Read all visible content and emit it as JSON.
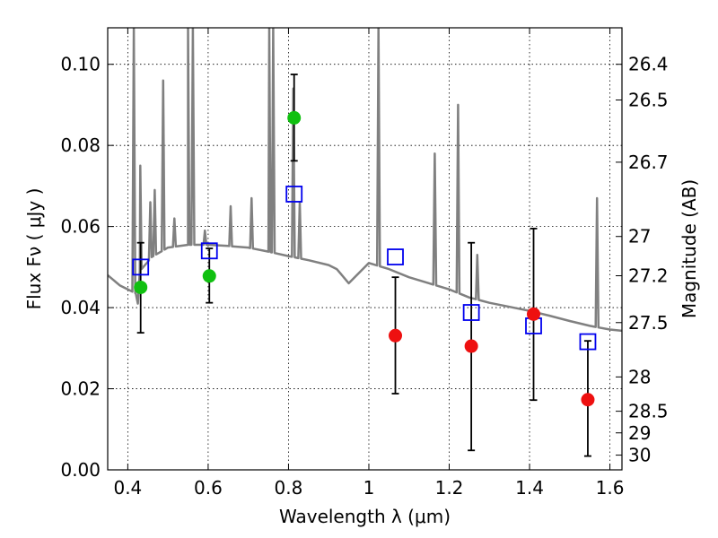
{
  "chart_data": {
    "type": "scatter",
    "xlabel": "Wavelength  λ (μm)",
    "ylabel_left": "Flux  Fν  ( μJy )",
    "ylabel_right": "Magnitude (AB)",
    "xlim": [
      0.35,
      1.63
    ],
    "ylim": [
      0.0,
      0.109
    ],
    "grid": true,
    "x_ticks": [
      {
        "value": 0.4,
        "label": "0.4"
      },
      {
        "value": 0.6,
        "label": "0.6"
      },
      {
        "value": 0.8,
        "label": "0.8"
      },
      {
        "value": 1.0,
        "label": "1"
      },
      {
        "value": 1.2,
        "label": "1.2"
      },
      {
        "value": 1.4,
        "label": "1.4"
      },
      {
        "value": 1.6,
        "label": "1.6"
      }
    ],
    "y_ticks": [
      {
        "value": 0.0,
        "label": "0.00"
      },
      {
        "value": 0.02,
        "label": "0.02"
      },
      {
        "value": 0.04,
        "label": "0.04"
      },
      {
        "value": 0.06,
        "label": "0.06"
      },
      {
        "value": 0.08,
        "label": "0.08"
      },
      {
        "value": 0.1,
        "label": "0.10"
      }
    ],
    "mag_ticks": [
      {
        "value": 26.4,
        "label": "26.4"
      },
      {
        "value": 26.5,
        "label": "26.5"
      },
      {
        "value": 26.7,
        "label": "26.7"
      },
      {
        "value": 27.0,
        "label": "27"
      },
      {
        "value": 27.2,
        "label": "27.2"
      },
      {
        "value": 27.5,
        "label": "27.5"
      },
      {
        "value": 28.0,
        "label": "28"
      },
      {
        "value": 28.5,
        "label": "28.5"
      },
      {
        "value": 29.0,
        "label": "29"
      },
      {
        "value": 30.0,
        "label": "30"
      }
    ],
    "series": [
      {
        "name": "model-spectrum",
        "kind": "line",
        "color": "#808080",
        "continuum": [
          [
            0.35,
            0.048
          ],
          [
            0.38,
            0.0455
          ],
          [
            0.4,
            0.0445
          ],
          [
            0.42,
            0.0435
          ],
          [
            0.425,
            0.041
          ],
          [
            0.43,
            0.049
          ],
          [
            0.46,
            0.0525
          ],
          [
            0.5,
            0.0548
          ],
          [
            0.55,
            0.0555
          ],
          [
            0.6,
            0.0555
          ],
          [
            0.65,
            0.0552
          ],
          [
            0.7,
            0.0548
          ],
          [
            0.75,
            0.0538
          ],
          [
            0.8,
            0.0527
          ],
          [
            0.85,
            0.0517
          ],
          [
            0.9,
            0.0505
          ],
          [
            0.92,
            0.0495
          ],
          [
            0.95,
            0.046
          ],
          [
            0.97,
            0.048
          ],
          [
            1.0,
            0.051
          ],
          [
            1.05,
            0.0495
          ],
          [
            1.1,
            0.0475
          ],
          [
            1.15,
            0.046
          ],
          [
            1.2,
            0.0445
          ],
          [
            1.25,
            0.0425
          ],
          [
            1.3,
            0.0412
          ],
          [
            1.35,
            0.0402
          ],
          [
            1.4,
            0.0392
          ],
          [
            1.45,
            0.038
          ],
          [
            1.5,
            0.0367
          ],
          [
            1.55,
            0.0355
          ],
          [
            1.6,
            0.0346
          ],
          [
            1.63,
            0.0343
          ]
        ],
        "lines": [
          {
            "x": 0.415,
            "peak": 0.109
          },
          {
            "x": 0.431,
            "peak": 0.075
          },
          {
            "x": 0.456,
            "peak": 0.066
          },
          {
            "x": 0.467,
            "peak": 0.069
          },
          {
            "x": 0.488,
            "peak": 0.096
          },
          {
            "x": 0.516,
            "peak": 0.062
          },
          {
            "x": 0.55,
            "peak": 0.109
          },
          {
            "x": 0.562,
            "peak": 0.109
          },
          {
            "x": 0.592,
            "peak": 0.059
          },
          {
            "x": 0.656,
            "peak": 0.065
          },
          {
            "x": 0.708,
            "peak": 0.067
          },
          {
            "x": 0.752,
            "peak": 0.109
          },
          {
            "x": 0.762,
            "peak": 0.109
          },
          {
            "x": 0.812,
            "peak": 0.094
          },
          {
            "x": 0.828,
            "peak": 0.066
          },
          {
            "x": 1.024,
            "peak": 0.109
          },
          {
            "x": 1.164,
            "peak": 0.078
          },
          {
            "x": 1.222,
            "peak": 0.09
          },
          {
            "x": 1.27,
            "peak": 0.053
          },
          {
            "x": 1.568,
            "peak": 0.067
          }
        ]
      },
      {
        "name": "model-photometry",
        "kind": "open-square",
        "color": "#0000ee",
        "x": [
          0.432,
          0.603,
          0.814,
          1.066,
          1.255,
          1.41,
          1.545
        ],
        "y": [
          0.05,
          0.054,
          0.068,
          0.0525,
          0.0388,
          0.0355,
          0.0316
        ]
      },
      {
        "name": "detections",
        "kind": "filled-circle",
        "color": "#10c010",
        "x": [
          0.432,
          0.603,
          0.814
        ],
        "y": [
          0.045,
          0.0478,
          0.0868
        ],
        "err_low": [
          0.0338,
          0.0412,
          0.0762
        ],
        "err_high": [
          0.056,
          0.0546,
          0.0975
        ]
      },
      {
        "name": "upper-limits",
        "kind": "filled-circle",
        "color": "#ee1010",
        "x": [
          1.066,
          1.255,
          1.41,
          1.545
        ],
        "y": [
          0.0331,
          0.0305,
          0.0384,
          0.0173
        ],
        "err_low": [
          0.0188,
          0.0048,
          0.0172,
          0.0034
        ],
        "err_high": [
          0.0475,
          0.056,
          0.0595,
          0.0318
        ]
      }
    ]
  }
}
